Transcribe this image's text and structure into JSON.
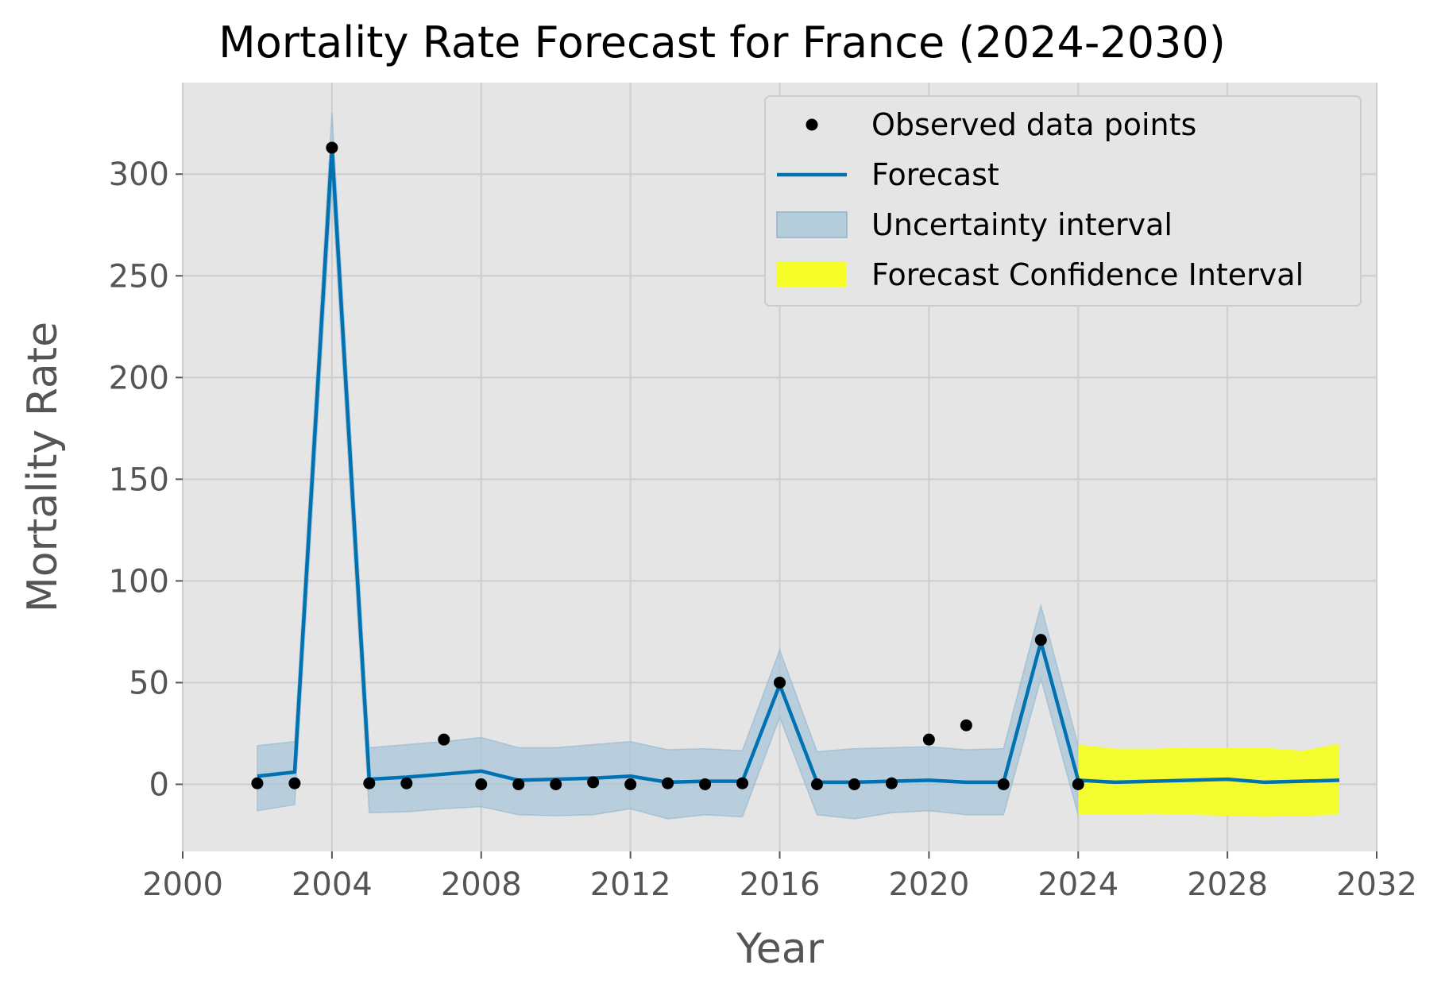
{
  "chart_data": {
    "type": "line",
    "title": "Mortality Rate Forecast for France (2024-2030)",
    "xlabel": "Year",
    "ylabel": "Mortality Rate",
    "xlim": [
      2000,
      2032
    ],
    "ylim": [
      -33,
      345
    ],
    "xticks": [
      2000,
      2004,
      2008,
      2012,
      2016,
      2020,
      2024,
      2028,
      2032
    ],
    "yticks": [
      0,
      50,
      100,
      150,
      200,
      250,
      300
    ],
    "grid": true,
    "legend_position": "top-right",
    "legend": [
      {
        "label": "Observed data points",
        "kind": "marker",
        "color": "#000000"
      },
      {
        "label": "Forecast",
        "kind": "line",
        "color": "#0072B2"
      },
      {
        "label": "Uncertainty interval",
        "kind": "band",
        "color": "#a9c6d8"
      },
      {
        "label": "Forecast Confidence Interval",
        "kind": "band",
        "color": "#f5ff1f"
      }
    ],
    "observed": {
      "name": "Observed data points",
      "x": [
        2002,
        2003,
        2004,
        2005,
        2006,
        2007,
        2008,
        2009,
        2010,
        2011,
        2012,
        2013,
        2014,
        2015,
        2016,
        2017,
        2018,
        2019,
        2020,
        2021,
        2022,
        2023,
        2024
      ],
      "y": [
        0.5,
        0.5,
        313,
        0.5,
        0.5,
        22,
        0,
        0,
        0,
        1,
        0,
        0.5,
        0,
        0.5,
        50,
        0,
        0,
        0.5,
        22,
        29,
        0,
        71,
        0
      ]
    },
    "forecast": {
      "name": "Forecast",
      "x": [
        2002,
        2003,
        2004,
        2005,
        2006,
        2007,
        2008,
        2009,
        2010,
        2011,
        2012,
        2013,
        2014,
        2015,
        2016,
        2017,
        2018,
        2019,
        2020,
        2021,
        2022,
        2023,
        2024,
        2025,
        2026,
        2027,
        2028,
        2029,
        2030,
        2031
      ],
      "y": [
        4,
        6,
        313,
        2.5,
        3.5,
        5,
        6.5,
        2,
        2.5,
        3,
        4,
        1,
        1.5,
        1.5,
        49,
        1,
        1,
        1.5,
        2,
        1,
        1,
        70,
        2,
        1,
        1.5,
        2,
        2.5,
        1,
        1.5,
        2
      ],
      "color": "#0072B2"
    },
    "uncertainty_interval": {
      "name": "Uncertainty interval",
      "x": [
        2002,
        2003,
        2004,
        2005,
        2006,
        2007,
        2008,
        2009,
        2010,
        2011,
        2012,
        2013,
        2014,
        2015,
        2016,
        2017,
        2018,
        2019,
        2020,
        2021,
        2022,
        2023,
        2024
      ],
      "lower": [
        -13,
        -10,
        295,
        -14,
        -13.5,
        -12,
        -11,
        -15,
        -15.5,
        -15,
        -12,
        -17,
        -15,
        -16,
        33,
        -15,
        -17,
        -14,
        -13,
        -15,
        -15,
        52,
        -15
      ],
      "upper": [
        19,
        21,
        330,
        18,
        19.5,
        21,
        23,
        18,
        18,
        19.5,
        21,
        17,
        17.5,
        16.5,
        66,
        16,
        17.5,
        18,
        18.5,
        17,
        17.5,
        88,
        19
      ],
      "color": "#a9c6d8"
    },
    "forecast_confidence_interval": {
      "name": "Forecast Confidence Interval",
      "x": [
        2024,
        2025,
        2026,
        2027,
        2028,
        2029,
        2030,
        2031
      ],
      "lower": [
        -15,
        -15,
        -14.5,
        -15,
        -15.5,
        -16,
        -15.5,
        -15
      ],
      "upper": [
        19.5,
        17.5,
        17.5,
        18,
        18,
        18,
        16.5,
        20
      ],
      "color": "#f5ff1f"
    }
  }
}
